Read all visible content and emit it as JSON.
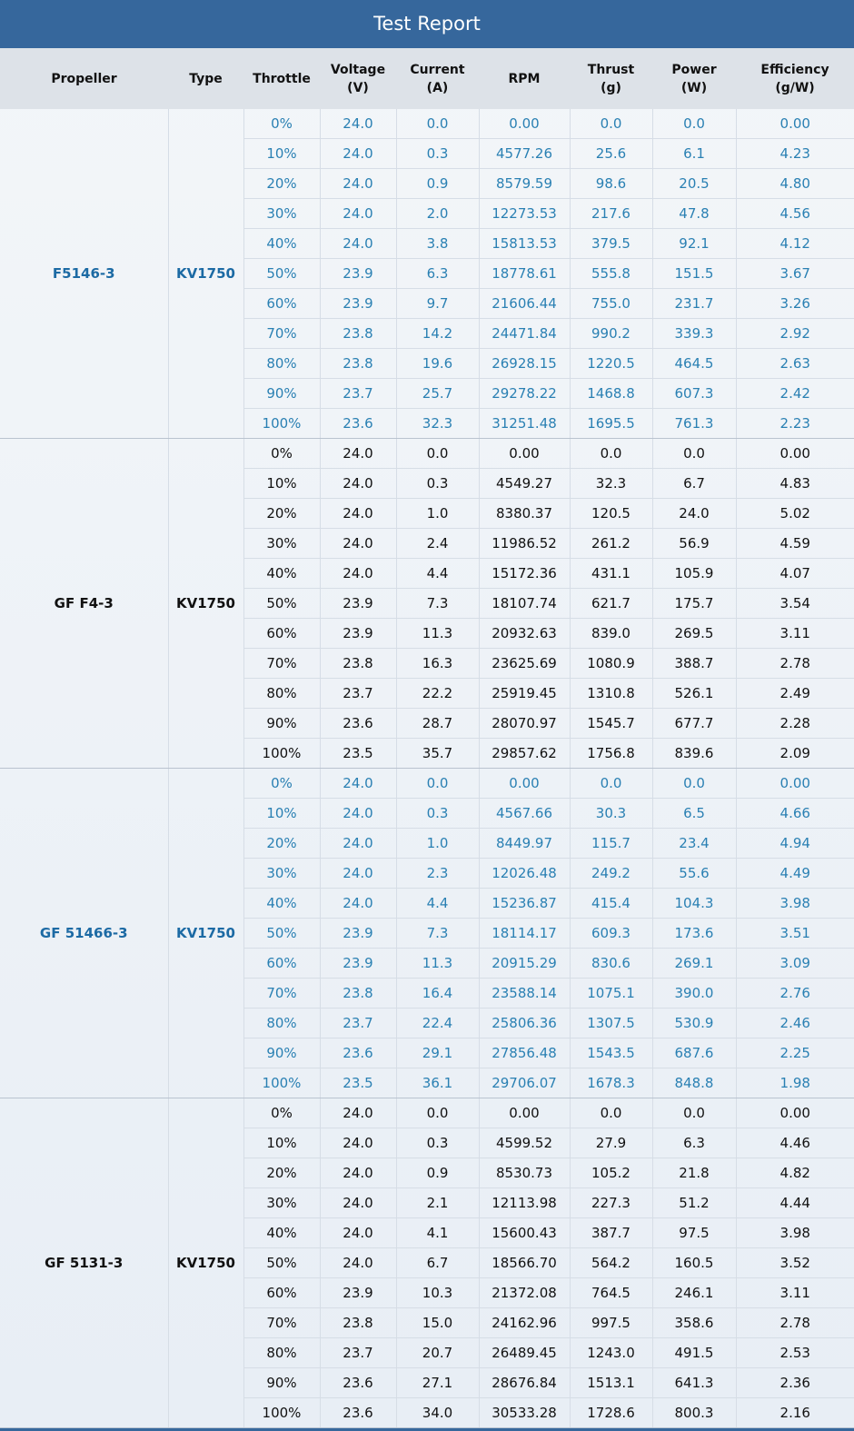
{
  "header": {
    "title": "Test Report"
  },
  "table": {
    "columns": [
      "Propeller",
      "Type",
      "Throttle",
      "Voltage\n(V)",
      "Current\n(A)",
      "RPM",
      "Thrust\n(g)",
      "Power\n(W)",
      "Efficiency\n(g/W)"
    ],
    "groups": [
      {
        "propeller": "F5146-3",
        "type": "KV1750",
        "rows": [
          [
            "0%",
            "24.0",
            "0.0",
            "0.00",
            "0.0",
            "0.0",
            "0.00"
          ],
          [
            "10%",
            "24.0",
            "0.3",
            "4577.26",
            "25.6",
            "6.1",
            "4.23"
          ],
          [
            "20%",
            "24.0",
            "0.9",
            "8579.59",
            "98.6",
            "20.5",
            "4.80"
          ],
          [
            "30%",
            "24.0",
            "2.0",
            "12273.53",
            "217.6",
            "47.8",
            "4.56"
          ],
          [
            "40%",
            "24.0",
            "3.8",
            "15813.53",
            "379.5",
            "92.1",
            "4.12"
          ],
          [
            "50%",
            "23.9",
            "6.3",
            "18778.61",
            "555.8",
            "151.5",
            "3.67"
          ],
          [
            "60%",
            "23.9",
            "9.7",
            "21606.44",
            "755.0",
            "231.7",
            "3.26"
          ],
          [
            "70%",
            "23.8",
            "14.2",
            "24471.84",
            "990.2",
            "339.3",
            "2.92"
          ],
          [
            "80%",
            "23.8",
            "19.6",
            "26928.15",
            "1220.5",
            "464.5",
            "2.63"
          ],
          [
            "90%",
            "23.7",
            "25.7",
            "29278.22",
            "1468.8",
            "607.3",
            "2.42"
          ],
          [
            "100%",
            "23.6",
            "32.3",
            "31251.48",
            "1695.5",
            "761.3",
            "2.23"
          ]
        ]
      },
      {
        "propeller": "GF F4-3",
        "type": "KV1750",
        "rows": [
          [
            "0%",
            "24.0",
            "0.0",
            "0.00",
            "0.0",
            "0.0",
            "0.00"
          ],
          [
            "10%",
            "24.0",
            "0.3",
            "4549.27",
            "32.3",
            "6.7",
            "4.83"
          ],
          [
            "20%",
            "24.0",
            "1.0",
            "8380.37",
            "120.5",
            "24.0",
            "5.02"
          ],
          [
            "30%",
            "24.0",
            "2.4",
            "11986.52",
            "261.2",
            "56.9",
            "4.59"
          ],
          [
            "40%",
            "24.0",
            "4.4",
            "15172.36",
            "431.1",
            "105.9",
            "4.07"
          ],
          [
            "50%",
            "23.9",
            "7.3",
            "18107.74",
            "621.7",
            "175.7",
            "3.54"
          ],
          [
            "60%",
            "23.9",
            "11.3",
            "20932.63",
            "839.0",
            "269.5",
            "3.11"
          ],
          [
            "70%",
            "23.8",
            "16.3",
            "23625.69",
            "1080.9",
            "388.7",
            "2.78"
          ],
          [
            "80%",
            "23.7",
            "22.2",
            "25919.45",
            "1310.8",
            "526.1",
            "2.49"
          ],
          [
            "90%",
            "23.6",
            "28.7",
            "28070.97",
            "1545.7",
            "677.7",
            "2.28"
          ],
          [
            "100%",
            "23.5",
            "35.7",
            "29857.62",
            "1756.8",
            "839.6",
            "2.09"
          ]
        ]
      },
      {
        "propeller": "GF 51466-3",
        "type": "KV1750",
        "rows": [
          [
            "0%",
            "24.0",
            "0.0",
            "0.00",
            "0.0",
            "0.0",
            "0.00"
          ],
          [
            "10%",
            "24.0",
            "0.3",
            "4567.66",
            "30.3",
            "6.5",
            "4.66"
          ],
          [
            "20%",
            "24.0",
            "1.0",
            "8449.97",
            "115.7",
            "23.4",
            "4.94"
          ],
          [
            "30%",
            "24.0",
            "2.3",
            "12026.48",
            "249.2",
            "55.6",
            "4.49"
          ],
          [
            "40%",
            "24.0",
            "4.4",
            "15236.87",
            "415.4",
            "104.3",
            "3.98"
          ],
          [
            "50%",
            "23.9",
            "7.3",
            "18114.17",
            "609.3",
            "173.6",
            "3.51"
          ],
          [
            "60%",
            "23.9",
            "11.3",
            "20915.29",
            "830.6",
            "269.1",
            "3.09"
          ],
          [
            "70%",
            "23.8",
            "16.4",
            "23588.14",
            "1075.1",
            "390.0",
            "2.76"
          ],
          [
            "80%",
            "23.7",
            "22.4",
            "25806.36",
            "1307.5",
            "530.9",
            "2.46"
          ],
          [
            "90%",
            "23.6",
            "29.1",
            "27856.48",
            "1543.5",
            "687.6",
            "2.25"
          ],
          [
            "100%",
            "23.5",
            "36.1",
            "29706.07",
            "1678.3",
            "848.8",
            "1.98"
          ]
        ]
      },
      {
        "propeller": "GF 5131-3",
        "type": "KV1750",
        "rows": [
          [
            "0%",
            "24.0",
            "0.0",
            "0.00",
            "0.0",
            "0.0",
            "0.00"
          ],
          [
            "10%",
            "24.0",
            "0.3",
            "4599.52",
            "27.9",
            "6.3",
            "4.46"
          ],
          [
            "20%",
            "24.0",
            "0.9",
            "8530.73",
            "105.2",
            "21.8",
            "4.82"
          ],
          [
            "30%",
            "24.0",
            "2.1",
            "12113.98",
            "227.3",
            "51.2",
            "4.44"
          ],
          [
            "40%",
            "24.0",
            "4.1",
            "15600.43",
            "387.7",
            "97.5",
            "3.98"
          ],
          [
            "50%",
            "24.0",
            "6.7",
            "18566.70",
            "564.2",
            "160.5",
            "3.52"
          ],
          [
            "60%",
            "23.9",
            "10.3",
            "21372.08",
            "764.5",
            "246.1",
            "3.11"
          ],
          [
            "70%",
            "23.8",
            "15.0",
            "24162.96",
            "997.5",
            "358.6",
            "2.78"
          ],
          [
            "80%",
            "23.7",
            "20.7",
            "26489.45",
            "1243.0",
            "491.5",
            "2.53"
          ],
          [
            "90%",
            "23.6",
            "27.1",
            "28676.84",
            "1513.1",
            "641.3",
            "2.36"
          ],
          [
            "100%",
            "23.6",
            "34.0",
            "30533.28",
            "1728.6",
            "800.3",
            "2.16"
          ]
        ]
      }
    ]
  }
}
